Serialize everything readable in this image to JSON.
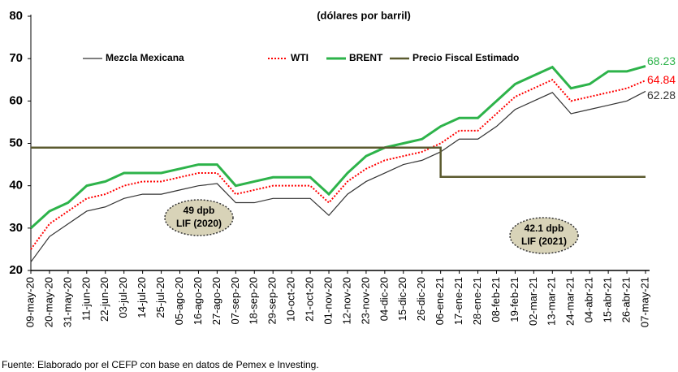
{
  "chart_data": {
    "type": "line",
    "subtitle": "(dólares por barril)",
    "source": "Fuente: Elaborado por el CEFP con base en datos de Pemex e Investing.",
    "categories": [
      "09-may-20",
      "20-may-20",
      "31-may-20",
      "11-jun-20",
      "22-jun-20",
      "03-jul-20",
      "14-jul-20",
      "25-jul-20",
      "05-ago-20",
      "16-ago-20",
      "27-ago-20",
      "07-sep-20",
      "18-sep-20",
      "29-sep-20",
      "10-oct-20",
      "21-oct-20",
      "01-nov-20",
      "12-nov-20",
      "23-nov-20",
      "04-dic-20",
      "15-dic-20",
      "26-dic-20",
      "06-ene-21",
      "17-ene-21",
      "28-ene-21",
      "08-feb-21",
      "19-feb-21",
      "02-mar-21",
      "13-mar-21",
      "24-mar-21",
      "04-abr-21",
      "15-abr-21",
      "26-abr-21",
      "07-may-21"
    ],
    "series": [
      {
        "name": "Mezcla Mexicana",
        "color": "#333333",
        "style": "thin",
        "values": [
          22,
          28,
          31,
          34,
          35,
          37,
          38,
          38,
          39,
          40,
          40.5,
          36,
          36,
          37,
          37,
          37,
          33,
          38,
          41,
          43,
          45,
          46,
          48,
          51,
          51,
          54,
          58,
          60,
          62,
          57,
          58,
          59,
          60,
          62.28
        ]
      },
      {
        "name": "WTI",
        "color": "#ff0000",
        "style": "dotted",
        "values": [
          25,
          31,
          34,
          37,
          38,
          40,
          41,
          41,
          42,
          43,
          43,
          38,
          39,
          40,
          40,
          40,
          36,
          41,
          44,
          46,
          47,
          48,
          50,
          53,
          53,
          57,
          61,
          63,
          65,
          60,
          61,
          62,
          63,
          64.84
        ]
      },
      {
        "name": "BRENT",
        "color": "#2db34a",
        "style": "thick",
        "values": [
          30,
          34,
          36,
          40,
          41,
          43,
          43,
          43,
          44,
          45,
          45,
          40,
          41,
          42,
          42,
          42,
          38,
          43,
          47,
          49,
          50,
          51,
          54,
          56,
          56,
          60,
          64,
          66,
          68,
          63,
          64,
          67,
          67,
          68.23
        ]
      },
      {
        "name": "Precio Fiscal Estimado",
        "color": "#5b5a2f",
        "style": "step",
        "values": [
          49,
          49,
          49,
          49,
          49,
          49,
          49,
          49,
          49,
          49,
          49,
          49,
          49,
          49,
          49,
          49,
          49,
          49,
          49,
          49,
          49,
          49,
          42.1,
          42.1,
          42.1,
          42.1,
          42.1,
          42.1,
          42.1,
          42.1,
          42.1,
          42.1,
          42.1,
          42.1
        ]
      }
    ],
    "ylim": [
      20,
      80
    ],
    "yticks": [
      20,
      30,
      40,
      50,
      60,
      70,
      80
    ],
    "annotations": [
      {
        "lines": [
          "49 dpb",
          "LIF (2020)"
        ]
      },
      {
        "lines": [
          "42.1 dpb",
          "LIF (2021)"
        ]
      }
    ]
  }
}
